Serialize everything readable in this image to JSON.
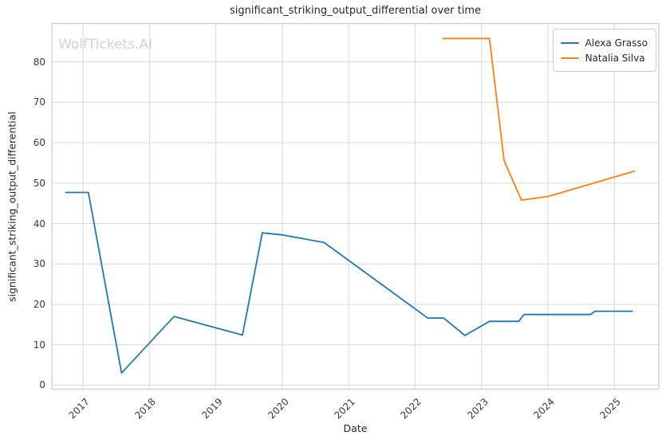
{
  "chart_data": {
    "type": "line",
    "title": "significant_striking_output_differential over time",
    "xlabel": "Date",
    "ylabel": "significant_striking_output_differential",
    "watermark": "WolfTickets.AI",
    "grid": true,
    "legend_position": "upper right",
    "x_ticks": [
      "2017",
      "2018",
      "2019",
      "2020",
      "2021",
      "2022",
      "2023",
      "2024",
      "2025"
    ],
    "x_tick_values": [
      2017,
      2018,
      2019,
      2020,
      2021,
      2022,
      2023,
      2024,
      2025
    ],
    "y_ticks": [
      "0",
      "10",
      "20",
      "30",
      "40",
      "50",
      "60",
      "70",
      "80"
    ],
    "y_tick_values": [
      0,
      10,
      20,
      30,
      40,
      50,
      60,
      70,
      80
    ],
    "xlim": [
      2016.53,
      2025.67
    ],
    "ylim": [
      -1,
      89.5
    ],
    "series": [
      {
        "name": "Alexa Grasso",
        "color": "#1f77b4",
        "x": [
          2016.73,
          2017.08,
          2017.58,
          2018.37,
          2019.4,
          2019.7,
          2020.0,
          2020.63,
          2022.19,
          2022.43,
          2022.75,
          2023.12,
          2023.56,
          2023.64,
          2024.64,
          2024.71,
          2025.28
        ],
        "y": [
          47.7,
          47.7,
          3.0,
          17.0,
          12.4,
          37.7,
          37.2,
          35.3,
          16.6,
          16.6,
          12.3,
          15.8,
          15.8,
          17.5,
          17.5,
          18.3,
          18.3
        ]
      },
      {
        "name": "Natalia Silva",
        "color": "#ff7f0e",
        "x": [
          2022.41,
          2023.12,
          2023.34,
          2023.6,
          2024.0,
          2025.31
        ],
        "y": [
          85.8,
          85.8,
          55.6,
          45.8,
          46.7,
          53.0
        ]
      }
    ],
    "style": {
      "grid_color": "#d9d9d9",
      "spine_color": "#cccccc",
      "line_width": 1.8
    }
  }
}
